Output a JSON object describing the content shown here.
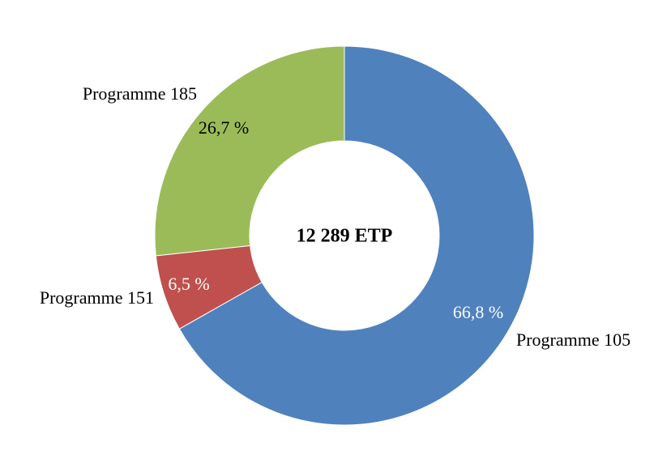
{
  "chart_data": {
    "type": "pie",
    "center_label": "12 289 ETP",
    "categories": [
      "Programme 105",
      "Programme 151",
      "Programme 185"
    ],
    "values": [
      66.8,
      6.5,
      26.7
    ],
    "value_labels": [
      "66,8 %",
      "6,5 %",
      "26,7 %"
    ],
    "colors": [
      "#4f81bd",
      "#c0504d",
      "#9bbb59"
    ]
  }
}
